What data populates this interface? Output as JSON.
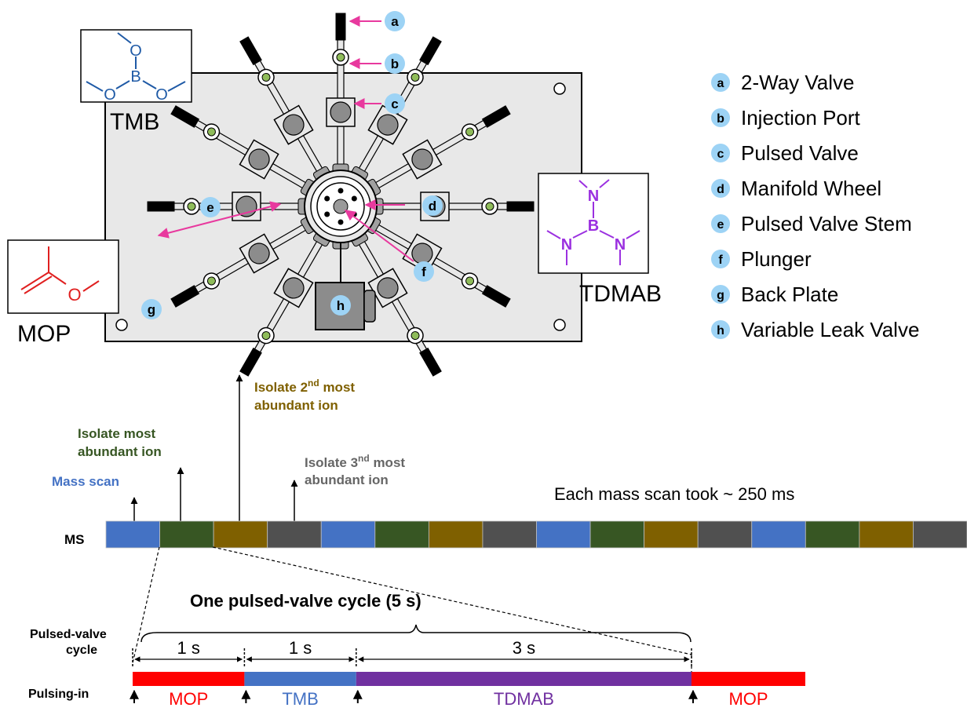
{
  "legend": [
    {
      "letter": "a",
      "label": "2-Way Valve"
    },
    {
      "letter": "b",
      "label": "Injection Port"
    },
    {
      "letter": "c",
      "label": "Pulsed Valve"
    },
    {
      "letter": "d",
      "label": "Manifold Wheel"
    },
    {
      "letter": "e",
      "label": "Pulsed Valve Stem"
    },
    {
      "letter": "f",
      "label": "Plunger"
    },
    {
      "letter": "g",
      "label": "Back Plate"
    },
    {
      "letter": "h",
      "label": "Variable Leak Valve"
    }
  ],
  "molecules": {
    "tmb": {
      "name": "TMB",
      "atoms": {
        "o": "O",
        "b": "B"
      }
    },
    "tdmab": {
      "name": "TDMAB",
      "atoms": {
        "n": "N",
        "b": "B"
      }
    },
    "mop": {
      "name": "MOP",
      "atoms": {
        "o": "O"
      }
    }
  },
  "ms": {
    "row_label": "MS",
    "annotations": {
      "mass_scan": "Mass scan",
      "isolate_1_line1": "Isolate most",
      "isolate_1_line2": "abundant ion",
      "isolate_2_line1": "Isolate 2",
      "isolate_2_sup": "nd",
      "isolate_2_line1_end": " most",
      "isolate_2_line2": "abundant ion",
      "isolate_3_line1": "Isolate 3",
      "isolate_3_sup": "nd",
      "isolate_3_line1_end": " most",
      "isolate_3_line2": "abundant ion"
    },
    "scan_note": "Each mass scan took ~ 250 ms",
    "segment_pattern": [
      "mass-scan",
      "isolate-1",
      "isolate-2",
      "isolate-3"
    ],
    "segment_count": 16
  },
  "cycle": {
    "title": "One pulsed-valve cycle (5 s)",
    "row_label_line1": "Pulsed-valve",
    "row_label_line2": "cycle",
    "pulsing_label": "Pulsing-in",
    "durations": [
      "1 s",
      "1 s",
      "3 s"
    ],
    "segments": [
      {
        "name": "MOP",
        "seconds": 1
      },
      {
        "name": "TMB",
        "seconds": 1
      },
      {
        "name": "TDMAB",
        "seconds": 3
      },
      {
        "name": "MOP",
        "seconds": 1
      }
    ]
  },
  "colors": {
    "mass_scan": "#4472c4",
    "isolate_1": "#375623",
    "isolate_2": "#7f6000",
    "isolate_3": "#505050",
    "mop": "#ff0000",
    "tmb": "#4472c4",
    "tdmab": "#7030a0",
    "arrow_pink": "#e8399e",
    "badge": "#9dd3f5",
    "plate": "#e8e8e8",
    "port_green": "#8fbc5a",
    "tmb_struct": "#1f5aa6",
    "tdmab_struct": "#9b30e0",
    "mop_struct": "#e02020"
  }
}
